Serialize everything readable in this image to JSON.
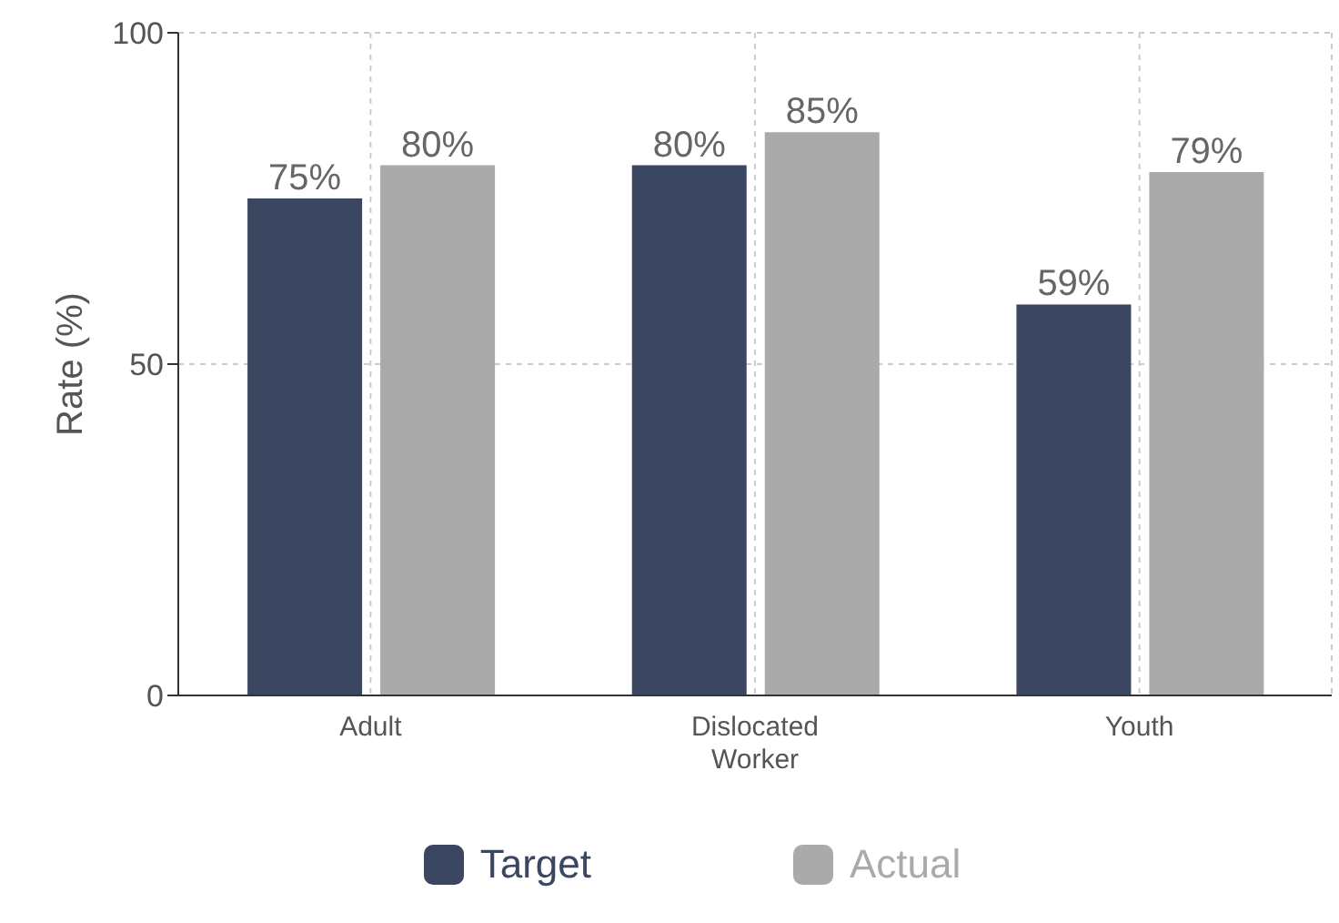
{
  "chart_data": {
    "type": "bar",
    "ylabel": "Rate (%)",
    "categories": [
      "Adult",
      "Dislocated Worker",
      "Youth"
    ],
    "series": [
      {
        "name": "Target",
        "color": "#3b4660",
        "values": [
          75,
          80,
          59
        ],
        "value_labels": [
          "75%",
          "80%",
          "59%"
        ]
      },
      {
        "name": "Actual",
        "color": "#aaaaaa",
        "values": [
          80,
          85,
          79
        ],
        "value_labels": [
          "80%",
          "85%",
          "79%"
        ]
      }
    ],
    "ylim": [
      0,
      100
    ],
    "yticks": [
      0,
      50,
      100
    ],
    "grid": true,
    "legend": "bottom"
  }
}
